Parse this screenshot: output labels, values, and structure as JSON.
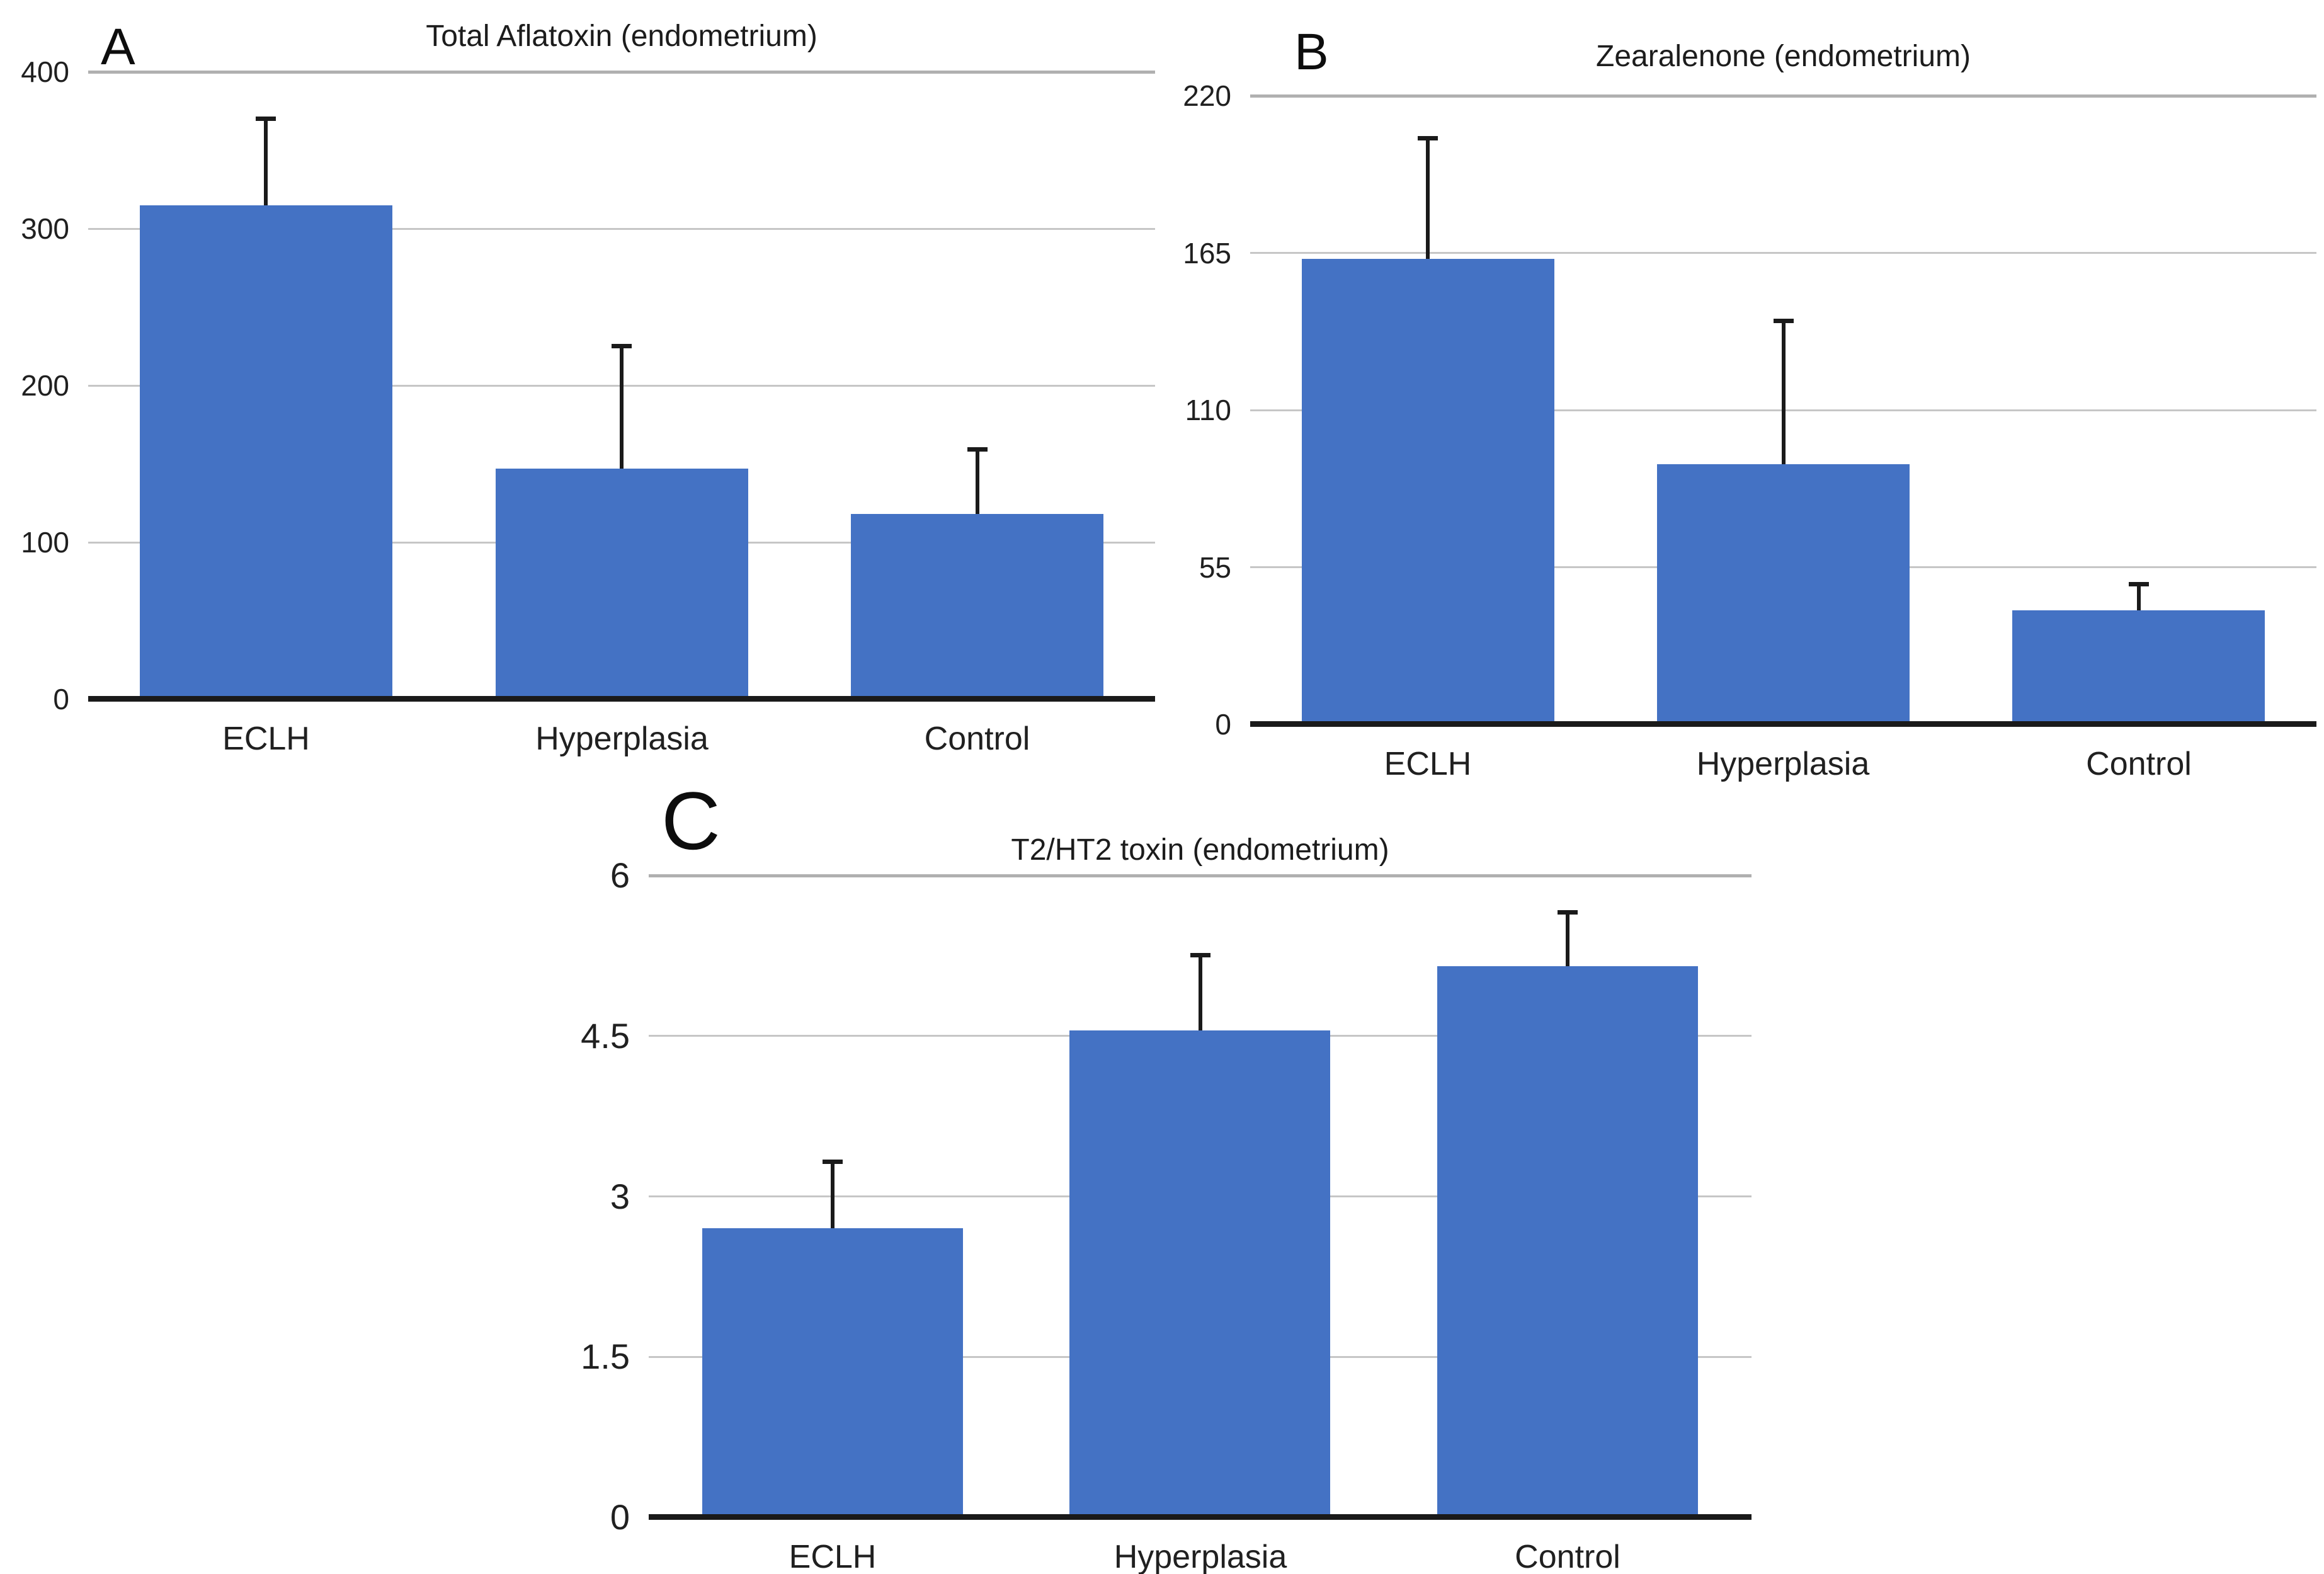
{
  "page": {
    "background": "#ffffff"
  },
  "colors": {
    "bar": "#4472c4",
    "grid": "#c6c6c6",
    "grid_strong": "#b0b0b0",
    "axis": "#1a1a1a",
    "text": "#202020"
  },
  "chart_data": [
    {
      "type": "bar",
      "panel_label": "A",
      "title": "Total Aflatoxin (endometrium)",
      "categories": [
        "ECLH",
        "Hyperplasia",
        "Control"
      ],
      "values": [
        315,
        147,
        118
      ],
      "error_up": [
        55,
        78,
        41
      ],
      "yticks": [
        0,
        100,
        200,
        300,
        400
      ],
      "ylim": [
        0,
        400
      ],
      "xlabel": "",
      "ylabel": "",
      "grid": true,
      "legend": false
    },
    {
      "type": "bar",
      "panel_label": "B",
      "title": "Zearalenone (endometrium)",
      "categories": [
        "ECLH",
        "Hyperplasia",
        "Control"
      ],
      "values": [
        163,
        91,
        40
      ],
      "error_up": [
        42,
        50,
        9
      ],
      "yticks": [
        0,
        55,
        110,
        165,
        220
      ],
      "ylim": [
        0,
        220
      ],
      "xlabel": "",
      "ylabel": "",
      "grid": true,
      "legend": false
    },
    {
      "type": "bar",
      "panel_label": "C",
      "title": "T2/HT2 toxin (endometrium)",
      "categories": [
        "ECLH",
        "Hyperplasia",
        "Control"
      ],
      "values": [
        2.7,
        4.55,
        5.15
      ],
      "error_up": [
        0.62,
        0.7,
        0.5
      ],
      "yticks": [
        0,
        1.5,
        3,
        4.5,
        6
      ],
      "ylim": [
        0,
        6
      ],
      "xlabel": "",
      "ylabel": "",
      "grid": true,
      "legend": false
    }
  ]
}
